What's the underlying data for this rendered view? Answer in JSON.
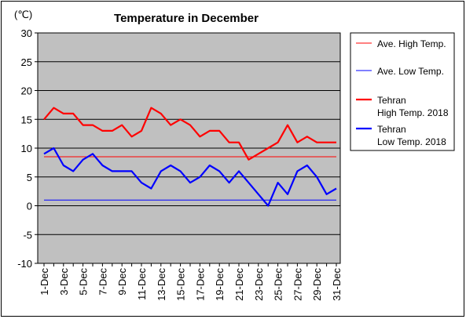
{
  "chart_data": {
    "type": "line",
    "title": "Temperature in December",
    "unit": "(℃)",
    "ylim": [
      -10,
      30
    ],
    "yticks": [
      30,
      25,
      20,
      15,
      10,
      5,
      0,
      -5,
      -10
    ],
    "grid": true,
    "legend_position": "right",
    "categories": [
      "1-Dec",
      "2-Dec",
      "3-Dec",
      "4-Dec",
      "5-Dec",
      "6-Dec",
      "7-Dec",
      "8-Dec",
      "9-Dec",
      "10-Dec",
      "11-Dec",
      "12-Dec",
      "13-Dec",
      "14-Dec",
      "15-Dec",
      "16-Dec",
      "17-Dec",
      "18-Dec",
      "19-Dec",
      "20-Dec",
      "21-Dec",
      "22-Dec",
      "23-Dec",
      "24-Dec",
      "25-Dec",
      "26-Dec",
      "27-Dec",
      "28-Dec",
      "29-Dec",
      "30-Dec",
      "31-Dec"
    ],
    "xtick_labels": [
      "1-Dec",
      "3-Dec",
      "5-Dec",
      "7-Dec",
      "9-Dec",
      "11-Dec",
      "13-Dec",
      "15-Dec",
      "17-Dec",
      "19-Dec",
      "21-Dec",
      "23-Dec",
      "25-Dec",
      "27-Dec",
      "29-Dec",
      "31-Dec"
    ],
    "series": [
      {
        "name": "Ave. High Temp.",
        "color": "#ff0000",
        "style": "thin",
        "values": [
          8.5,
          8.5,
          8.5,
          8.5,
          8.5,
          8.5,
          8.5,
          8.5,
          8.5,
          8.5,
          8.5,
          8.5,
          8.5,
          8.5,
          8.5,
          8.5,
          8.5,
          8.5,
          8.5,
          8.5,
          8.5,
          8.5,
          8.5,
          8.5,
          8.5,
          8.5,
          8.5,
          8.5,
          8.5,
          8.5,
          8.5
        ]
      },
      {
        "name": "Ave. Low Temp.",
        "color": "#0000ff",
        "style": "thin",
        "values": [
          1,
          1,
          1,
          1,
          1,
          1,
          1,
          1,
          1,
          1,
          1,
          1,
          1,
          1,
          1,
          1,
          1,
          1,
          1,
          1,
          1,
          1,
          1,
          1,
          1,
          1,
          1,
          1,
          1,
          1,
          1
        ]
      },
      {
        "name": "Tehran\nHigh Temp. 2018",
        "color": "#ff0000",
        "style": "thick",
        "values": [
          15,
          17,
          16,
          16,
          14,
          14,
          13,
          13,
          14,
          12,
          13,
          17,
          16,
          14,
          15,
          14,
          12,
          13,
          13,
          11,
          11,
          8,
          9,
          10,
          11,
          14,
          11,
          12,
          11,
          11,
          11
        ]
      },
      {
        "name": "Tehran\nLow Temp. 2018",
        "color": "#0000ff",
        "style": "thick",
        "values": [
          9,
          10,
          7,
          6,
          8,
          9,
          7,
          6,
          6,
          6,
          4,
          3,
          6,
          7,
          6,
          4,
          5,
          7,
          6,
          4,
          6,
          4,
          2,
          0,
          4,
          2,
          6,
          7,
          5,
          2,
          3
        ]
      }
    ]
  }
}
